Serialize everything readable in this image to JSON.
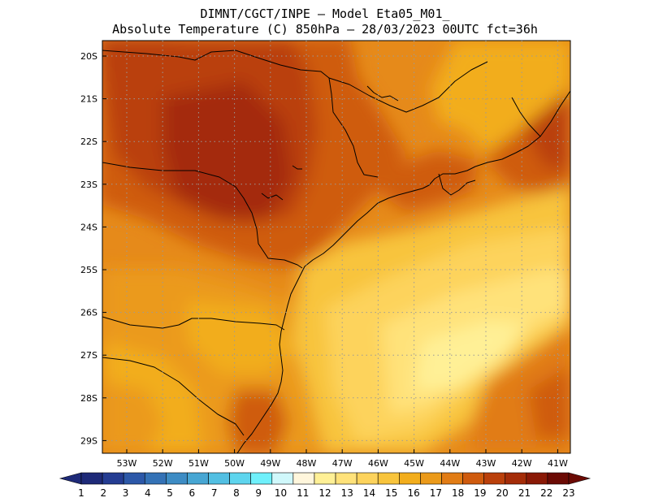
{
  "title": {
    "line1": "DIMNT/CGCT/INPE —  Model Eta05_M01_",
    "line2": "Absolute Temperature (C) 850hPa —  28/03/2023 00UTC fct=36h"
  },
  "map": {
    "lat_labels": [
      "20S",
      "21S",
      "22S",
      "23S",
      "24S",
      "25S",
      "26S",
      "27S",
      "28S",
      "29S"
    ],
    "lon_labels": [
      "53W",
      "52W",
      "51W",
      "50W",
      "49W",
      "48W",
      "47W",
      "46W",
      "45W",
      "44W",
      "43W",
      "42W",
      "41W"
    ]
  },
  "colorbar": {
    "labels": [
      "1",
      "2",
      "3",
      "4",
      "5",
      "6",
      "7",
      "8",
      "9",
      "10",
      "11",
      "12",
      "13",
      "14",
      "15",
      "16",
      "17",
      "18",
      "19",
      "20",
      "21",
      "22",
      "23"
    ],
    "colors": [
      "#1e2a78",
      "#243c92",
      "#2c58a8",
      "#3472b6",
      "#3d8cc4",
      "#47a6d3",
      "#52bfe2",
      "#5ed5ee",
      "#6ff0fb",
      "#d0f8fb",
      "#fff6dc",
      "#fff096",
      "#ffe27a",
      "#fdd35c",
      "#f8c43c",
      "#f2ad1c",
      "#eb9a1a",
      "#e17c15",
      "#cf5b0e",
      "#ba400b",
      "#a42c08",
      "#8a1906",
      "#6b0a04"
    ]
  }
}
